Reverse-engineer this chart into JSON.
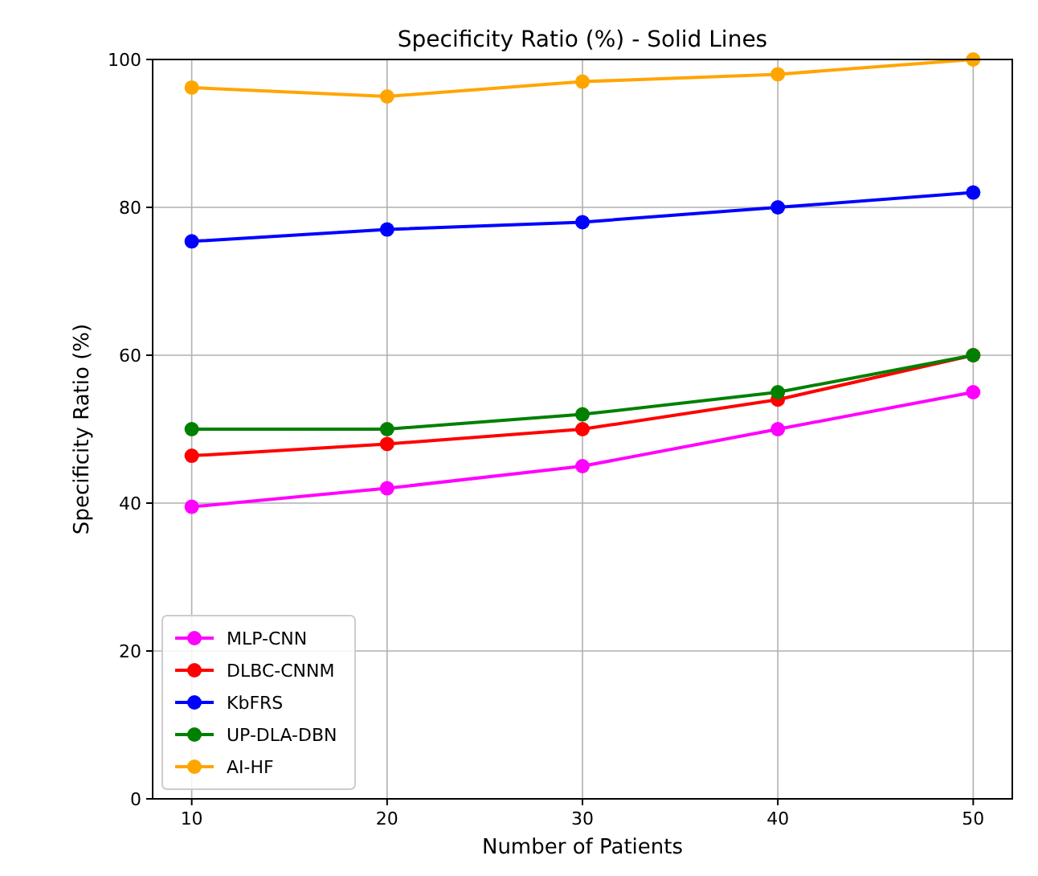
{
  "chart_data": {
    "type": "line",
    "title": "Specificity Ratio (%) - Solid Lines",
    "xlabel": "Number of Patients",
    "ylabel": "Specificity Ratio (%)",
    "x": [
      10,
      20,
      30,
      40,
      50
    ],
    "series": [
      {
        "name": "MLP-CNN",
        "color": "#ff00ff",
        "values": [
          39.5,
          42,
          45,
          50,
          55
        ]
      },
      {
        "name": "DLBC-CNNM",
        "color": "#ff0000",
        "values": [
          46.4,
          48,
          50,
          54,
          60
        ]
      },
      {
        "name": "KbFRS",
        "color": "#0000ff",
        "values": [
          75.4,
          77,
          78,
          80,
          82
        ]
      },
      {
        "name": "UP-DLA-DBN",
        "color": "#008000",
        "values": [
          50,
          50,
          52,
          55,
          60
        ]
      },
      {
        "name": "AI-HF",
        "color": "#ffa500",
        "values": [
          96.2,
          95,
          97,
          98,
          100
        ]
      }
    ],
    "xlim": [
      8,
      52
    ],
    "xticks": [
      10,
      20,
      30,
      40,
      50
    ],
    "ylim": [
      0,
      100
    ],
    "yticks": [
      0,
      20,
      40,
      60,
      80,
      100
    ],
    "grid": true,
    "legend": "bottom left",
    "marker": "circle",
    "line_style": "solid"
  }
}
